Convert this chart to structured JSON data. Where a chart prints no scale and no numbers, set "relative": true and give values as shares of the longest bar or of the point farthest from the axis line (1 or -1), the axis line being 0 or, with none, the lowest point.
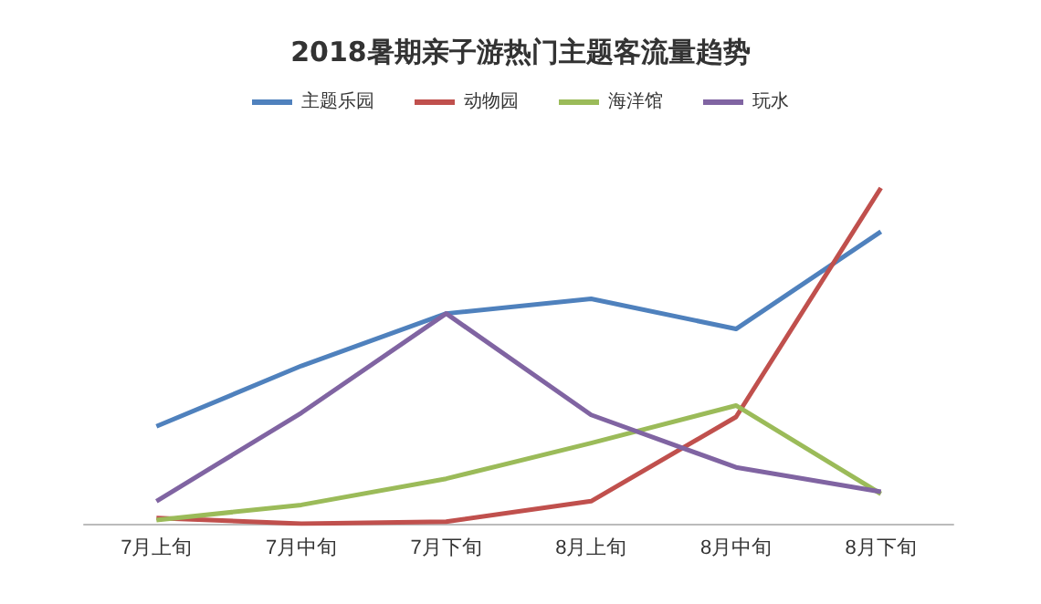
{
  "chart_data": {
    "type": "line",
    "title": "2018暑期亲子游热门主题客流量趋势",
    "relative": true,
    "categories": [
      "7月上旬",
      "7月中旬",
      "7月下旬",
      "8月上旬",
      "8月中旬",
      "8月下旬"
    ],
    "series": [
      {
        "name": "主题乐园",
        "color": "#4f81bd",
        "values": [
          0.29,
          0.47,
          0.626,
          0.67,
          0.58,
          0.87
        ]
      },
      {
        "name": "动物园",
        "color": "#c0504d",
        "values": [
          0.017,
          0,
          0.006,
          0.067,
          0.318,
          1
        ]
      },
      {
        "name": "海洋馆",
        "color": "#9bbb59",
        "values": [
          0.011,
          0.056,
          0.134,
          0.24,
          0.352,
          0.089
        ]
      },
      {
        "name": "玩水",
        "color": "#8064a2",
        "values": [
          0.067,
          0.33,
          0.626,
          0.324,
          0.168,
          0.095
        ]
      }
    ],
    "legend": "top",
    "grid": false,
    "marker": "none"
  }
}
